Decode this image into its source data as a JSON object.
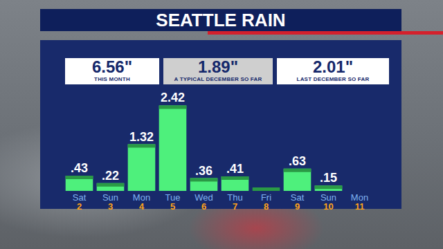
{
  "chart_data": {
    "type": "bar",
    "title": "SEATTLE RAIN",
    "stats": [
      {
        "value": "6.56\"",
        "label": "THIS MONTH"
      },
      {
        "value": "1.89\"",
        "label": "A TYPICAL DECEMBER SO FAR"
      },
      {
        "value": "2.01\"",
        "label": "LAST DECEMBER SO FAR"
      }
    ],
    "categories": [
      "Sat\n2",
      "Sun\n3",
      "Mon\n4",
      "Tue\n5",
      "Wed\n6",
      "Thu\n7",
      "Fri\n8",
      "Sat\n9",
      "Sun\n10",
      "Mon\n11"
    ],
    "values": [
      0.43,
      0.22,
      1.32,
      2.42,
      0.36,
      0.41,
      0,
      0.63,
      0.15,
      null
    ],
    "value_labels": [
      ".43",
      ".22",
      "1.32",
      "2.42",
      ".36",
      ".41",
      null,
      ".63",
      ".15",
      null
    ],
    "color": "#4ef07c",
    "ylim": [
      0,
      2.8
    ],
    "grid": false,
    "data_labels": true,
    "tick_labels": "x"
  }
}
